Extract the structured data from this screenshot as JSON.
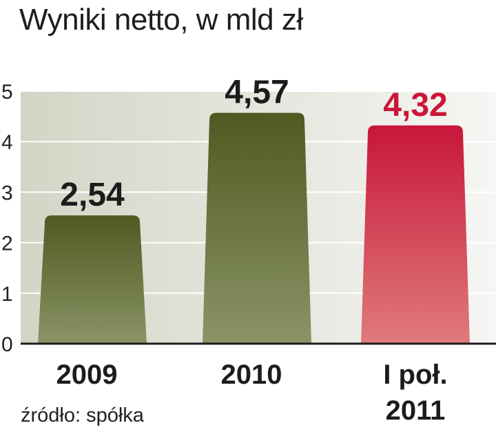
{
  "chart_data": {
    "type": "bar",
    "title": "Wyniki netto, w mld zł",
    "xlabel": "",
    "ylabel": "",
    "categories": [
      [
        "2009"
      ],
      [
        "2010"
      ],
      [
        "I poł.",
        "2011"
      ]
    ],
    "values": [
      2.54,
      4.57,
      4.32
    ],
    "value_labels": [
      "2,54",
      "4,57",
      "4,32"
    ],
    "yticks": [
      "0",
      "1",
      "2",
      "3",
      "4",
      "5"
    ],
    "ylim": [
      0,
      5
    ],
    "grid": true,
    "legend": "none",
    "colors": {
      "bar_green_top": "#4f5a21",
      "bar_green_bottom": "#8a9467",
      "bar_red_top": "#c8163a",
      "bar_red_bottom": "#e07b7b",
      "label_green": "#1c1c1c",
      "label_red": "#cc1538",
      "background_left": "#d4d4c6",
      "background_right": "#f6f6f4",
      "gridline": "#ffffff",
      "axis": "#1c1c1c"
    },
    "highlight_index": 2
  },
  "source": "źródło: spółka"
}
